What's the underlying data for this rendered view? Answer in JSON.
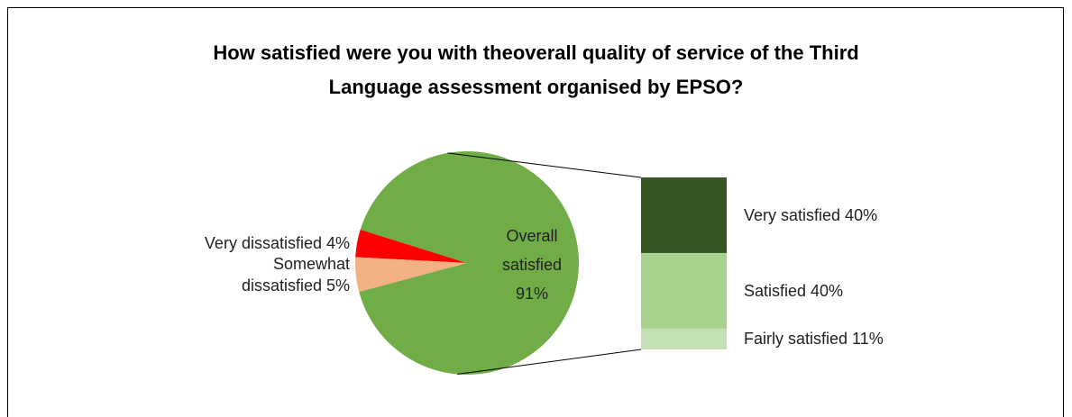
{
  "chart_data": {
    "type": "bar-of-pie",
    "title": "How satisfied were you with theoverall quality of service of the Third\nLanguage assessment organised by EPSO?",
    "values": [
      4,
      5,
      91
    ],
    "value_labels": [
      "Very dissatisfied 4%",
      "Somewhat\ndissatisfied 5%",
      "Overall\nsatisfied\n91%"
    ],
    "colors": [
      "#ff0000",
      "#f4b183",
      "#70ad47"
    ],
    "breakdown": {
      "values": [
        40,
        40,
        11
      ],
      "value_labels": [
        "Very satisfied 40%",
        "Satisfied 40%",
        "Fairly satisfied 11%"
      ],
      "colors": [
        "#375623",
        "#a9d18e",
        "#c5e0b4"
      ]
    }
  }
}
